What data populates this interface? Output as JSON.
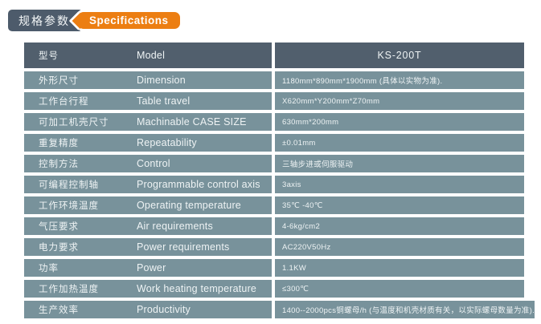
{
  "header_badges": {
    "title_zh": "规格参数",
    "title_en": "Specifications"
  },
  "colors": {
    "accent_orange": "#ec7e12",
    "badge_slate": "#4d5b6b",
    "table_header_slate": "#515f6d",
    "table_row_slate": "#78929b",
    "text_light": "#eef3f4"
  },
  "table": {
    "header": {
      "label_zh": "型号",
      "label_en": "Model",
      "value": "KS-200T"
    },
    "rows": [
      {
        "label_zh": "外形尺寸",
        "label_en": "Dimension",
        "value": "1180mm*890mm*1900mm (具体以实物为准)."
      },
      {
        "label_zh": "工作台行程",
        "label_en": "Table travel",
        "value": "X620mm*Y200mm*Z70mm"
      },
      {
        "label_zh": "可加工机壳尺寸",
        "label_en": "Machinable CASE SIZE",
        "value": "630mm*200mm"
      },
      {
        "label_zh": "重复精度",
        "label_en": "Repeatability",
        "value": "±0.01mm"
      },
      {
        "label_zh": "控制方法",
        "label_en": "Control",
        "value": "三轴步进或伺服驱动"
      },
      {
        "label_zh": "可编程控制轴",
        "label_en": "Programmable control axis",
        "value": "3axis"
      },
      {
        "label_zh": "工作环境温度",
        "label_en": "Operating temperature",
        "value": "35℃ -40℃"
      },
      {
        "label_zh": "气压要求",
        "label_en": "Air requirements",
        "value": "4-6kg/cm2"
      },
      {
        "label_zh": "电力要求",
        "label_en": "Power requirements",
        "value": "AC220V50Hz"
      },
      {
        "label_zh": "功率",
        "label_en": "Power",
        "value": "1.1KW"
      },
      {
        "label_zh": "工作加热温度",
        "label_en": "Work heating temperature",
        "value": "≤300℃"
      },
      {
        "label_zh": "生产效率",
        "label_en": "Productivity",
        "value": "1400--2000pcs铜螺母/h (与温度和机壳材质有关，以实际螺母数量为准)."
      }
    ]
  }
}
